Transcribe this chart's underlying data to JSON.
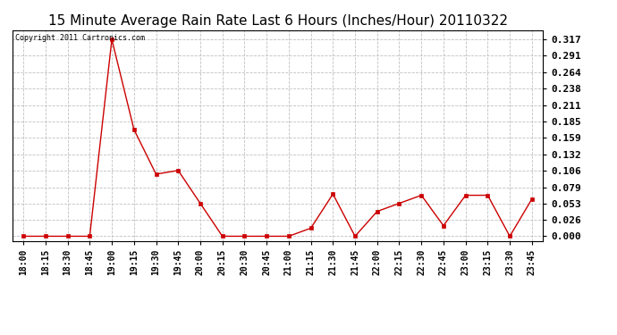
{
  "title": "15 Minute Average Rain Rate Last 6 Hours (Inches/Hour) 20110322",
  "copyright_text": "Copyright 2011 Cartronics.com",
  "line_color": "#cc0000",
  "marker": "s",
  "marker_size": 2.5,
  "background_color": "#ffffff",
  "grid_color": "#c0c0c0",
  "tick_labels": [
    "18:00",
    "18:15",
    "18:30",
    "18:45",
    "19:00",
    "19:15",
    "19:30",
    "19:45",
    "20:00",
    "20:15",
    "20:30",
    "20:45",
    "21:00",
    "21:15",
    "21:30",
    "21:45",
    "22:00",
    "22:15",
    "22:30",
    "22:45",
    "23:00",
    "23:15",
    "23:30",
    "23:45"
  ],
  "values": [
    0.0,
    0.0,
    0.0,
    0.0,
    0.317,
    0.172,
    0.1,
    0.106,
    0.053,
    0.0,
    0.0,
    0.0,
    0.0,
    0.013,
    0.068,
    0.0,
    0.04,
    0.053,
    0.066,
    0.017,
    0.066,
    0.066,
    0.0,
    0.06
  ],
  "yticks": [
    0.0,
    0.026,
    0.053,
    0.079,
    0.106,
    0.132,
    0.159,
    0.185,
    0.211,
    0.238,
    0.264,
    0.291,
    0.317
  ],
  "ylim": [
    -0.008,
    0.332
  ],
  "title_fontsize": 11,
  "copyright_fontsize": 6,
  "tick_fontsize": 7,
  "ytick_fontsize": 8
}
